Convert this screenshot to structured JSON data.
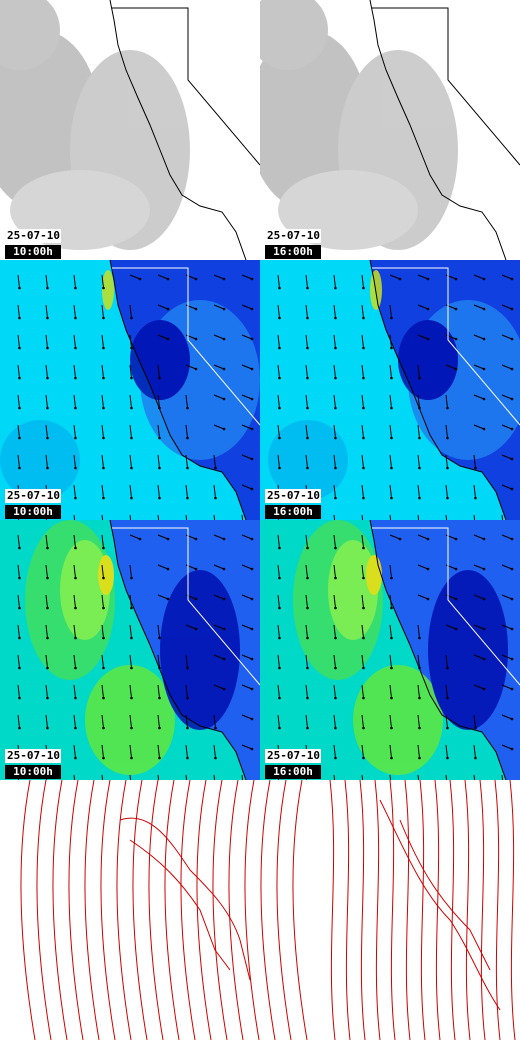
{
  "panels": [
    {
      "date": "25-07-10",
      "time": "10:00h"
    },
    {
      "date": "25-07-10",
      "time": "16:00h"
    },
    {
      "date": "25-07-10",
      "time": "10:00h"
    },
    {
      "date": "25-07-10",
      "time": "16:00h"
    },
    {
      "date": "25-07-10",
      "time": "10:00h"
    },
    {
      "date": "25-07-10",
      "time": "16:00h"
    }
  ]
}
